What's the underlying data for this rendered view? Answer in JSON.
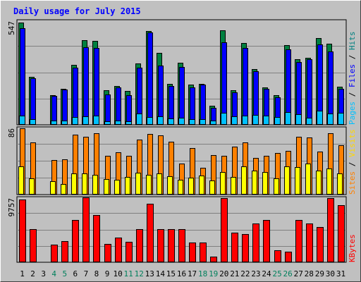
{
  "chart_data": {
    "type": "bar",
    "title": "Daily usage for July 2015",
    "days": [
      "1",
      "2",
      "3",
      "4",
      "5",
      "6",
      "7",
      "8",
      "9",
      "10",
      "11",
      "12",
      "13",
      "14",
      "15",
      "16",
      "17",
      "18",
      "19",
      "20",
      "21",
      "22",
      "23",
      "24",
      "25",
      "26",
      "27",
      "28",
      "29",
      "30",
      "31"
    ],
    "weekend_days": [
      4,
      5,
      11,
      12,
      18,
      19,
      25,
      26
    ],
    "panels": [
      {
        "max_label": "547",
        "ymax": 547,
        "right_labels": [
          "Pages",
          "/",
          "Files",
          "/",
          "Hits"
        ],
        "series": [
          {
            "name": "Hits",
            "color": "#008040",
            "values": [
              540,
              253,
              0,
              157,
              190,
              317,
              446,
              441,
              184,
              203,
              180,
              325,
              496,
              380,
              215,
              326,
              211,
              215,
              99,
              498,
              184,
              432,
              293,
              197,
              155,
              422,
              345,
              355,
              458,
              428,
              200
            ]
          },
          {
            "name": "Files",
            "color": "#0000ff",
            "values": [
              510,
              245,
              0,
              152,
              187,
              303,
              409,
              407,
              161,
              196,
              157,
              303,
              489,
              314,
              203,
              306,
              197,
              211,
              91,
              437,
              170,
              404,
              282,
              188,
              145,
              398,
              333,
              347,
              426,
              387,
              190
            ]
          },
          {
            "name": "Pages",
            "color": "#00c0ff",
            "values": [
              50,
              28,
              0,
              22,
              24,
              40,
              46,
              50,
              20,
              22,
              20,
              60,
              42,
              44,
              32,
              38,
              30,
              28,
              22,
              62,
              46,
              48,
              52,
              48,
              42,
              68,
              54,
              38,
              74,
              60,
              64
            ]
          }
        ]
      },
      {
        "max_label": "86",
        "ymax": 86,
        "right_labels": [
          "Sites",
          "/",
          "Visits"
        ],
        "series": [
          {
            "name": "Visits",
            "color": "#ff8000",
            "values": [
              86,
              68,
              0,
              45,
              46,
              78,
              75,
              80,
              50,
              55,
              50,
              71,
              79,
              77,
              69,
              40,
              60,
              35,
              51,
              50,
              62,
              68,
              48,
              50,
              54,
              57,
              75,
              74,
              56,
              80,
              64
            ]
          },
          {
            "name": "Sites",
            "color": "#ffff00",
            "values": [
              37,
              21,
              0,
              17,
              14,
              27,
              27,
              26,
              20,
              19,
              23,
              28,
              26,
              27,
              24,
              19,
              22,
              25,
              18,
              29,
              23,
              37,
              31,
              29,
              21,
              37,
              36,
              40,
              31,
              34,
              27
            ]
          }
        ]
      },
      {
        "max_label": "9757",
        "ymax": 9757,
        "right_labels": [
          "KBytes"
        ],
        "series": [
          {
            "name": "KBytes",
            "color": "#ff0000",
            "values": [
              9520,
              5040,
              0,
              2700,
              3260,
              6430,
              9860,
              7230,
              2790,
              3750,
              3160,
              5050,
              8940,
              5040,
              5040,
              5070,
              3040,
              2990,
              870,
              9760,
              4450,
              4340,
              5850,
              6430,
              1790,
              1620,
              6420,
              5860,
              5330,
              9780,
              8680
            ]
          }
        ]
      }
    ]
  }
}
